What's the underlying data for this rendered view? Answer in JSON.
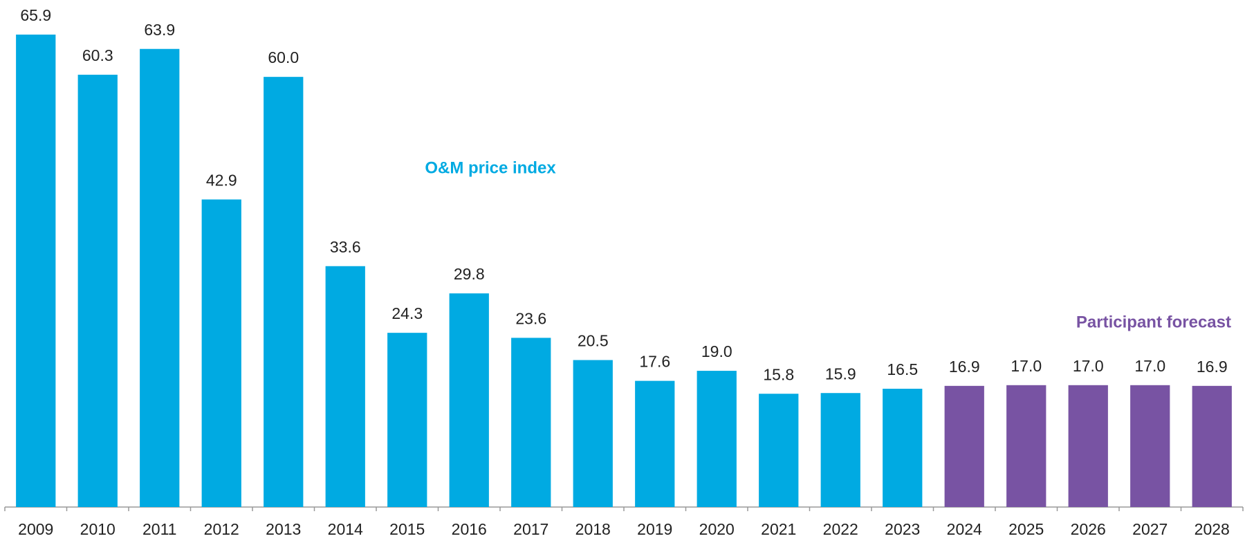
{
  "chart_data": {
    "type": "bar",
    "categories": [
      "2009",
      "2010",
      "2011",
      "2012",
      "2013",
      "2014",
      "2015",
      "2016",
      "2017",
      "2018",
      "2019",
      "2020",
      "2021",
      "2022",
      "2023",
      "2024",
      "2025",
      "2026",
      "2027",
      "2028"
    ],
    "series": [
      {
        "name": "O&M price index",
        "color": "#00aae2",
        "values": [
          65.9,
          60.3,
          63.9,
          42.9,
          60.0,
          33.6,
          24.3,
          29.8,
          23.6,
          20.5,
          17.6,
          19.0,
          15.8,
          15.9,
          16.5,
          null,
          null,
          null,
          null,
          null
        ],
        "value_labels": [
          "65.9",
          "60.3",
          "63.9",
          "42.9",
          "60.0",
          "33.6",
          "24.3",
          "29.8",
          "23.6",
          "20.5",
          "17.6",
          "19.0",
          "15.8",
          "15.9",
          "16.5",
          null,
          null,
          null,
          null,
          null
        ]
      },
      {
        "name": "Participant forecast",
        "color": "#7853a3",
        "values": [
          null,
          null,
          null,
          null,
          null,
          null,
          null,
          null,
          null,
          null,
          null,
          null,
          null,
          null,
          null,
          16.9,
          17.0,
          17.0,
          17.0,
          16.9
        ],
        "value_labels": [
          null,
          null,
          null,
          null,
          null,
          null,
          null,
          null,
          null,
          null,
          null,
          null,
          null,
          null,
          null,
          "16.9",
          "17.0",
          "17.0",
          "17.0",
          "16.9"
        ]
      }
    ]
  }
}
